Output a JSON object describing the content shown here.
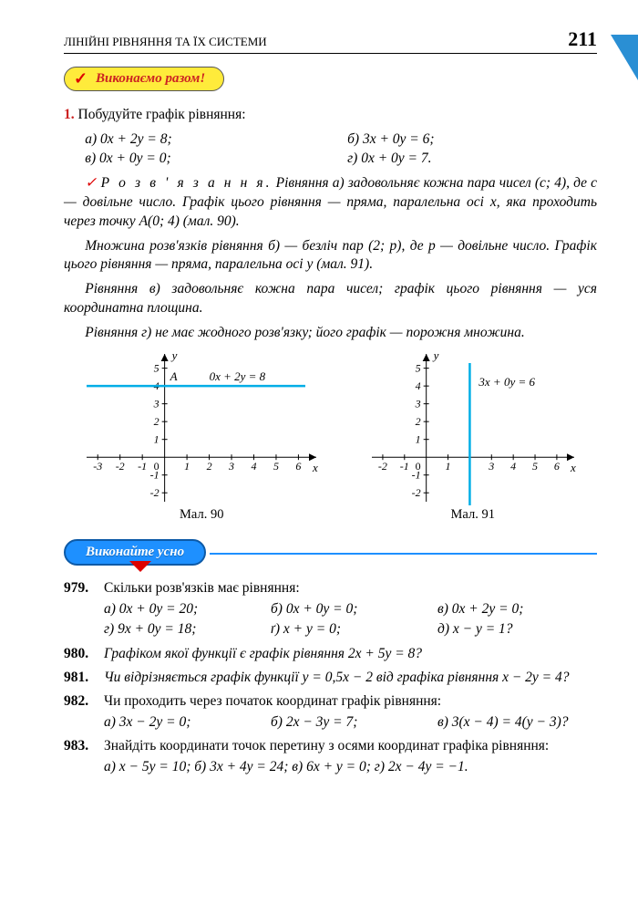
{
  "header": {
    "left": "ЛІНІЙНІ РІВНЯННЯ ТА ЇХ СИСТЕМИ",
    "page": "211"
  },
  "badges": {
    "yellow": "Виконаємо разом!",
    "blue": "Виконайте усно"
  },
  "ex1": {
    "num": "1.",
    "task": "Побудуйте графік рівняння:",
    "opts": {
      "a": "а) 0x + 2y = 8;",
      "b": "б) 3x + 0y = 6;",
      "c": "в) 0x + 0y = 0;",
      "d": "г) 0x + 0y = 7."
    },
    "sol_label": "Р о з в ' я з а н н я.",
    "p1": " Рівняння а) задовольняє кожна пара чисел (c; 4), де c — довільне число. Графік цього рівняння — пряма, паралельна осі x, яка проходить через точку A(0; 4) (мал. 90).",
    "p2": "Множина розв'язків рівняння б) — безліч пар (2; p), де p — довільне число. Графік цього рівняння — пряма, паралельна осі y (мал. 91).",
    "p3": "Рівняння в) задовольняє кожна пара чисел; графік цього рівняння — уся координатна площина.",
    "p4": "Рівняння г) не має жодного розв'язку; його графік — порожня множина."
  },
  "chart1": {
    "type": "line",
    "caption": "Мал. 90",
    "x_ticks": [
      -3,
      -2,
      -1,
      0,
      1,
      2,
      3,
      4,
      5,
      6
    ],
    "y_ticks": [
      -2,
      -1,
      1,
      2,
      3,
      4,
      5
    ],
    "xlim": [
      -3.5,
      6.8
    ],
    "ylim": [
      -2.5,
      5.8
    ],
    "line_y": 4,
    "point_label": "A",
    "eq_label": "0x + 2y = 8",
    "axis_color": "#000",
    "line_color": "#00aee6",
    "line_width": 2.5,
    "y_axis_label": "y",
    "x_axis_label": "x",
    "tick_font": 12
  },
  "chart2": {
    "type": "line",
    "caption": "Мал. 91",
    "x_ticks": [
      -2,
      -1,
      0,
      1,
      3,
      4,
      5,
      6
    ],
    "y_ticks": [
      -2,
      -1,
      1,
      2,
      3,
      4,
      5
    ],
    "xlim": [
      -2.5,
      6.8
    ],
    "ylim": [
      -2.5,
      5.8
    ],
    "line_x": 2,
    "eq_label": "3x + 0y = 6",
    "axis_color": "#000",
    "line_color": "#00aee6",
    "line_width": 2.5,
    "y_axis_label": "y",
    "x_axis_label": "x",
    "tick_font": 12
  },
  "problems": {
    "p979": {
      "n": "979.",
      "t": "Скільки розв'язків має рівняння:",
      "o": [
        "а) 0x + 0y = 20;",
        "б) 0x + 0y = 0;",
        "в) 0x + 2y = 0;",
        "г) 9x + 0y = 18;",
        "ґ) x + y = 0;",
        "д) x − y = 1?"
      ]
    },
    "p980": {
      "n": "980.",
      "t": "Графіком якої функції є графік рівняння 2x + 5y = 8?"
    },
    "p981": {
      "n": "981.",
      "t": "Чи відрізняється графік функції y = 0,5x − 2 від графіка рівняння x − 2y = 4?"
    },
    "p982": {
      "n": "982.",
      "t": "Чи проходить через початок координат графік рівняння:",
      "o": [
        "а) 3x − 2y = 0;",
        "б) 2x − 3y = 7;",
        "в) 3(x − 4) = 4(y − 3)?"
      ]
    },
    "p983": {
      "n": "983.",
      "t": "Знайдіть координати точок перетину з осями координат графіка рівняння:",
      "line": "а) x − 5y = 10; б) 3x + 4y = 24; в) 6x + y = 0; г) 2x − 4y = −1."
    }
  }
}
